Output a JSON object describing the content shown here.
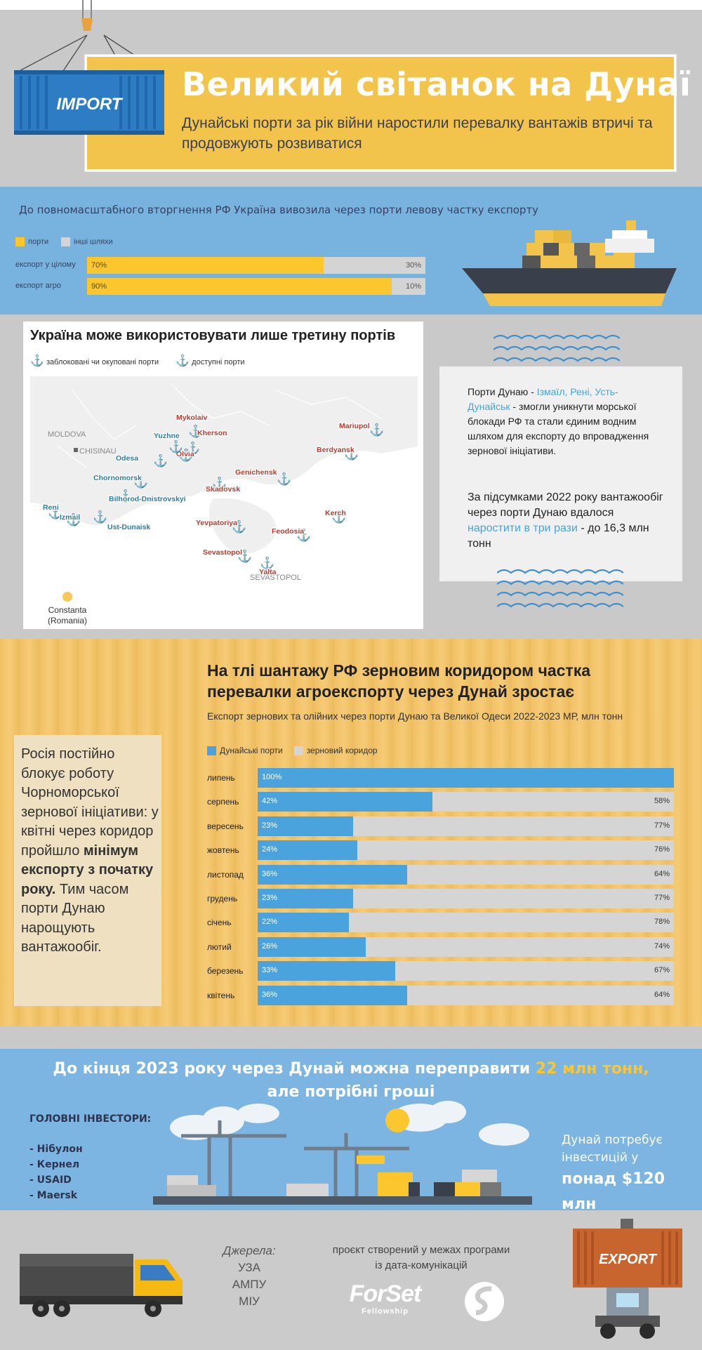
{
  "header": {
    "title": "Великий світанок на Дунаї",
    "subtitle": "Дунайські порти за рік війни наростили перевалку вантажів втричі та продовжують розвиватися",
    "container_label": "IMPORT"
  },
  "exports_share": {
    "lead": "До повномасштабного вторгнення РФ Україна вивозила через порти левову частку експорту",
    "legend": [
      "порти",
      "інші шляхи"
    ],
    "colors": {
      "ports": "#fcc72e",
      "other": "#d4d4d4"
    },
    "rows": [
      {
        "label": "експорт у цілому",
        "ports": 70,
        "other": 30,
        "ports_text": "70%",
        "other_text": "30%"
      },
      {
        "label": "експорт агро",
        "ports": 90,
        "other": 10,
        "ports_text": "90%",
        "other_text": "10%"
      }
    ]
  },
  "map": {
    "title": "Україна може використовувати лише третину портів",
    "legend_blocked": "заблоковані чи окуповані порти",
    "legend_available": "доступні порти",
    "colors": {
      "blocked": "#c0392b",
      "available": "#2a7fa8"
    },
    "places": {
      "moldova": "MOLDOVA",
      "chisinau": "CHISINAU",
      "constanta": "Constanta",
      "romania": "(Romania)",
      "sevastopol_city": "SEVASTOPOL"
    },
    "blocked_ports": [
      "Mykolaiv",
      "Kherson",
      "Olvia",
      "Skadovsk",
      "Genichensk",
      "Berdyansk",
      "Mariupol",
      "Kerch",
      "Feodosia",
      "Yevpatoriya",
      "Sevastopol",
      "Yalta"
    ],
    "available_ports": [
      "Odesa",
      "Yuzhne",
      "Chornomorsk",
      "Bilhorod-Dnistrovskyi",
      "Reni",
      "Izmail",
      "Ust-Dunaisk"
    ]
  },
  "info": {
    "p1_a": "Порти Дунаю - ",
    "p1_hl": "Ізмаїл, Рені, Усть-Дунайськ",
    "p1_b": " - змогли уникнути морської блокади РФ та стали єдиним водним шляхом для експорту до впровадження зернової ініціативи.",
    "p2_a": "За підсумками 2022 року вантажообіг через порти Дунаю вдалося ",
    "p2_hl": "наростити в три рази",
    "p2_b": " - до 16,3 млн тонн"
  },
  "corridor": {
    "title": "На тлі шантажу РФ зерновим коридором частка перевалки агроекспорту через Дунай зростає",
    "subtitle": "Експорт зернових та олійних через порти Дунаю та Великої Одеси 2022-2023 МР, млн тонн",
    "note_a": "Росія постійно блокує роботу Чорноморської зернової ініціативи: у квітні через коридор пройшло ",
    "note_bold": "мінімум експорту з початку року.",
    "note_b": " Тим часом порти Дунаю нарощують вантажообіг."
  },
  "chart_data": {
    "type": "bar",
    "stacked": true,
    "orientation": "horizontal",
    "categories": [
      "липень",
      "серпень",
      "вересень",
      "жовтень",
      "листопад",
      "грудень",
      "січень",
      "лютий",
      "березень",
      "квітень"
    ],
    "series": [
      {
        "name": "Дунайські порти",
        "color": "#4aa3dc",
        "values": [
          100,
          42,
          23,
          24,
          36,
          23,
          22,
          26,
          33,
          36
        ]
      },
      {
        "name": "зерновий коридор",
        "color": "#d5d5d5",
        "values": [
          0,
          58,
          77,
          76,
          64,
          77,
          78,
          74,
          67,
          64
        ]
      }
    ],
    "unit": "%",
    "xlim": [
      0,
      100
    ]
  },
  "investment": {
    "head_a": "До кінця 2023 року через Дунай можна переправити ",
    "head_hl": "22 млн тонн,",
    "head_b": "але потрібні гроші",
    "investors_title": "ГОЛОВНІ ІНВЕСТОРИ:",
    "investors": [
      "- Нібулон",
      "- Кернел",
      "- USAID",
      "- Maersk"
    ],
    "needs_a": "Дунай потребує інвестицій у",
    "needs_b": "понад $120 млн"
  },
  "footer": {
    "sources_title": "Джерела:",
    "sources": [
      "УЗА",
      "АМПУ",
      "МІУ"
    ],
    "project": "проєкт створений у межах програми із дата-комунікацій",
    "logo_main": "ForSet",
    "logo_sub": "Fellowship",
    "container_label": "EXPORT"
  }
}
